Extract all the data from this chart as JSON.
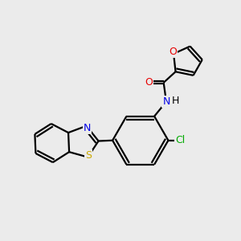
{
  "background_color": "#ebebeb",
  "bond_color": "#000000",
  "atom_colors": {
    "O": "#e60000",
    "N": "#0000e6",
    "S": "#ccaa00",
    "Cl": "#00aa00",
    "H": "#000000",
    "C": "#000000"
  },
  "figsize": [
    3.0,
    3.0
  ],
  "dpi": 100,
  "lw": 1.6,
  "double_sep": 0.06,
  "font_size": 9
}
